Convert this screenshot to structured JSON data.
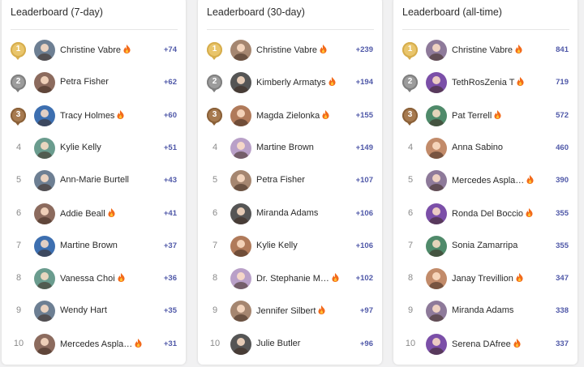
{
  "panels": [
    {
      "title": "Leaderboard (7-day)",
      "rows": [
        {
          "rank": "1",
          "name": "Christine Vabre",
          "streak": true,
          "score": "+74"
        },
        {
          "rank": "2",
          "name": "Petra Fisher",
          "streak": false,
          "score": "+62"
        },
        {
          "rank": "3",
          "name": "Tracy Holmes",
          "streak": true,
          "score": "+60"
        },
        {
          "rank": "4",
          "name": "Kylie Kelly",
          "streak": false,
          "score": "+51"
        },
        {
          "rank": "5",
          "name": "Ann-Marie Burtell",
          "streak": false,
          "score": "+43"
        },
        {
          "rank": "6",
          "name": "Addie Beall",
          "streak": true,
          "score": "+41"
        },
        {
          "rank": "7",
          "name": "Martine Brown",
          "streak": false,
          "score": "+37"
        },
        {
          "rank": "8",
          "name": "Vanessa Choi",
          "streak": true,
          "score": "+36"
        },
        {
          "rank": "9",
          "name": "Wendy Hart",
          "streak": false,
          "score": "+35"
        },
        {
          "rank": "10",
          "name": "Mercedes Aspla…",
          "streak": true,
          "score": "+31"
        }
      ]
    },
    {
      "title": "Leaderboard (30-day)",
      "rows": [
        {
          "rank": "1",
          "name": "Christine Vabre",
          "streak": true,
          "score": "+239"
        },
        {
          "rank": "2",
          "name": "Kimberly Armatys",
          "streak": true,
          "score": "+194"
        },
        {
          "rank": "3",
          "name": "Magda Zielonka",
          "streak": true,
          "score": "+155"
        },
        {
          "rank": "4",
          "name": "Martine Brown",
          "streak": false,
          "score": "+149"
        },
        {
          "rank": "5",
          "name": "Petra Fisher",
          "streak": false,
          "score": "+107"
        },
        {
          "rank": "6",
          "name": "Miranda Adams",
          "streak": false,
          "score": "+106"
        },
        {
          "rank": "7",
          "name": "Kylie Kelly",
          "streak": false,
          "score": "+106"
        },
        {
          "rank": "8",
          "name": "Dr. Stephanie M…",
          "streak": true,
          "score": "+102"
        },
        {
          "rank": "9",
          "name": "Jennifer Silbert",
          "streak": true,
          "score": "+97"
        },
        {
          "rank": "10",
          "name": "Julie Butler",
          "streak": false,
          "score": "+96"
        }
      ]
    },
    {
      "title": "Leaderboard (all-time)",
      "rows": [
        {
          "rank": "1",
          "name": "Christine Vabre",
          "streak": true,
          "score": "841"
        },
        {
          "rank": "2",
          "name": "TethRosZenia T",
          "streak": true,
          "score": "719"
        },
        {
          "rank": "3",
          "name": "Pat Terrell",
          "streak": true,
          "score": "572"
        },
        {
          "rank": "4",
          "name": "Anna Sabino",
          "streak": false,
          "score": "460"
        },
        {
          "rank": "5",
          "name": "Mercedes Aspla…",
          "streak": true,
          "score": "390"
        },
        {
          "rank": "6",
          "name": "Ronda Del Boccio",
          "streak": true,
          "score": "355"
        },
        {
          "rank": "7",
          "name": "Sonia Zamarripa",
          "streak": false,
          "score": "355"
        },
        {
          "rank": "8",
          "name": "Janay Trevillion",
          "streak": true,
          "score": "347"
        },
        {
          "rank": "9",
          "name": "Miranda Adams",
          "streak": false,
          "score": "338"
        },
        {
          "rank": "10",
          "name": "Serena DAfree",
          "streak": true,
          "score": "337"
        }
      ]
    }
  ]
}
